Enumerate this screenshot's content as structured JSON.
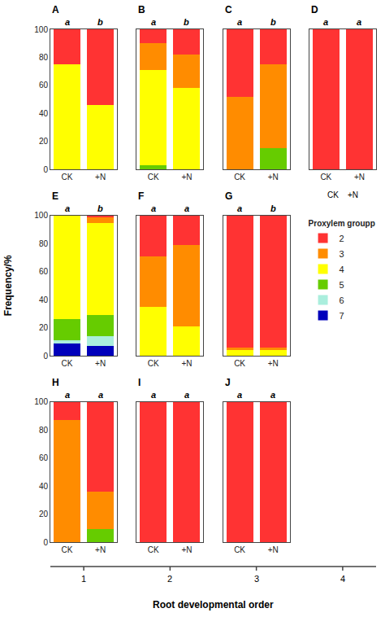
{
  "ylabel": "Frequency/%",
  "xlabel": "Root developmental order",
  "column_labels": [
    "1",
    "2",
    "3",
    "4"
  ],
  "legend_title": "Proxylem groupp",
  "chart_data": [
    {
      "type": "bar",
      "stacked": true,
      "title": "A",
      "categories": [
        "CK",
        "+N"
      ],
      "series": [
        {
          "name": "7",
          "color": "#0000BB",
          "values": [
            0,
            0
          ]
        },
        {
          "name": "6",
          "color": "#AAEEDD",
          "values": [
            0,
            0
          ]
        },
        {
          "name": "5",
          "color": "#66CC00",
          "values": [
            0,
            0
          ]
        },
        {
          "name": "4",
          "color": "#FFFF00",
          "values": [
            75,
            46
          ]
        },
        {
          "name": "3",
          "color": "#FF8C00",
          "values": [
            0,
            0
          ]
        },
        {
          "name": "2",
          "color": "#FF3333",
          "values": [
            25,
            54
          ]
        }
      ],
      "annotations": [
        {
          "category": "CK",
          "text": "a"
        },
        {
          "category": "+N",
          "text": "b"
        }
      ],
      "ylim": [
        0,
        100
      ],
      "yticks": [
        0,
        20,
        40,
        60,
        80,
        100
      ],
      "grid": false
    },
    {
      "type": "bar",
      "stacked": true,
      "title": "B",
      "categories": [
        "CK",
        "+N"
      ],
      "series": [
        {
          "name": "7",
          "color": "#0000BB",
          "values": [
            0,
            0
          ]
        },
        {
          "name": "6",
          "color": "#AAEEDD",
          "values": [
            0,
            0
          ]
        },
        {
          "name": "5",
          "color": "#66CC00",
          "values": [
            3,
            0
          ]
        },
        {
          "name": "4",
          "color": "#FFFF00",
          "values": [
            68,
            58
          ]
        },
        {
          "name": "3",
          "color": "#FF8C00",
          "values": [
            19,
            24
          ]
        },
        {
          "name": "2",
          "color": "#FF3333",
          "values": [
            10,
            18
          ]
        }
      ],
      "annotations": [
        {
          "category": "CK",
          "text": "a"
        },
        {
          "category": "+N",
          "text": "b"
        }
      ],
      "ylim": [
        0,
        100
      ],
      "yticks": [
        0,
        20,
        40,
        60,
        80,
        100
      ],
      "grid": false,
      "tick_labels": "x"
    },
    {
      "type": "bar",
      "stacked": true,
      "title": "C",
      "categories": [
        "CK",
        "+N"
      ],
      "series": [
        {
          "name": "7",
          "color": "#0000BB",
          "values": [
            0,
            0
          ]
        },
        {
          "name": "6",
          "color": "#AAEEDD",
          "values": [
            0,
            0
          ]
        },
        {
          "name": "5",
          "color": "#66CC00",
          "values": [
            0,
            15
          ]
        },
        {
          "name": "4",
          "color": "#FFFF00",
          "values": [
            0,
            0
          ]
        },
        {
          "name": "3",
          "color": "#FF8C00",
          "values": [
            52,
            60
          ]
        },
        {
          "name": "2",
          "color": "#FF3333",
          "values": [
            48,
            25
          ]
        }
      ],
      "annotations": [
        {
          "category": "CK",
          "text": "a"
        },
        {
          "category": "+N",
          "text": "b"
        }
      ],
      "ylim": [
        0,
        100
      ],
      "yticks": [
        0,
        20,
        40,
        60,
        80,
        100
      ],
      "grid": false,
      "tick_labels": "x"
    },
    {
      "type": "bar",
      "stacked": true,
      "title": "D",
      "categories": [
        "CK",
        "+N"
      ],
      "series": [
        {
          "name": "7",
          "color": "#0000BB",
          "values": [
            0,
            0
          ]
        },
        {
          "name": "6",
          "color": "#AAEEDD",
          "values": [
            0,
            0
          ]
        },
        {
          "name": "5",
          "color": "#66CC00",
          "values": [
            0,
            0
          ]
        },
        {
          "name": "4",
          "color": "#FFFF00",
          "values": [
            0,
            0
          ]
        },
        {
          "name": "3",
          "color": "#FF8C00",
          "values": [
            0,
            0
          ]
        },
        {
          "name": "2",
          "color": "#FF3333",
          "values": [
            100,
            100
          ]
        }
      ],
      "annotations": [
        {
          "category": "CK",
          "text": "a"
        },
        {
          "category": "+N",
          "text": "a"
        },
        {
          "text": "CK    +N"
        }
      ],
      "ylim": [
        0,
        100
      ],
      "yticks": [
        0,
        20,
        40,
        60,
        80,
        100
      ],
      "grid": false,
      "tick_labels": "x"
    },
    {
      "type": "bar",
      "stacked": true,
      "title": "E",
      "categories": [
        "CK",
        "+N"
      ],
      "series": [
        {
          "name": "7",
          "color": "#0000BB",
          "values": [
            9,
            7
          ]
        },
        {
          "name": "6",
          "color": "#AAEEDD",
          "values": [
            2,
            7
          ]
        },
        {
          "name": "5",
          "color": "#66CC00",
          "values": [
            15,
            15
          ]
        },
        {
          "name": "4",
          "color": "#FFFF00",
          "values": [
            74,
            66
          ]
        },
        {
          "name": "3",
          "color": "#FF8C00",
          "values": [
            0,
            4
          ]
        },
        {
          "name": "2",
          "color": "#FF3333",
          "values": [
            0,
            1
          ]
        }
      ],
      "annotations": [
        {
          "category": "CK",
          "text": "a"
        },
        {
          "category": "+N",
          "text": "b"
        }
      ],
      "ylim": [
        0,
        100
      ],
      "yticks": [
        0,
        20,
        40,
        60,
        80,
        100
      ],
      "grid": false
    },
    {
      "type": "bar",
      "stacked": true,
      "title": "F",
      "categories": [
        "CK",
        "+N"
      ],
      "series": [
        {
          "name": "7",
          "color": "#0000BB",
          "values": [
            0,
            0
          ]
        },
        {
          "name": "6",
          "color": "#AAEEDD",
          "values": [
            0,
            0
          ]
        },
        {
          "name": "5",
          "color": "#66CC00",
          "values": [
            0,
            0
          ]
        },
        {
          "name": "4",
          "color": "#FFFF00",
          "values": [
            35,
            21
          ]
        },
        {
          "name": "3",
          "color": "#FF8C00",
          "values": [
            36,
            58
          ]
        },
        {
          "name": "2",
          "color": "#FF3333",
          "values": [
            29,
            21
          ]
        }
      ],
      "annotations": [
        {
          "category": "CK",
          "text": "a"
        },
        {
          "category": "+N",
          "text": "a"
        }
      ],
      "ylim": [
        0,
        100
      ],
      "yticks": [
        0,
        20,
        40,
        60,
        80,
        100
      ],
      "grid": false,
      "tick_labels": "x"
    },
    {
      "type": "bar",
      "stacked": true,
      "title": "G",
      "categories": [
        "CK",
        "+N"
      ],
      "series": [
        {
          "name": "7",
          "color": "#0000BB",
          "values": [
            0,
            0
          ]
        },
        {
          "name": "6",
          "color": "#AAEEDD",
          "values": [
            0,
            0
          ]
        },
        {
          "name": "5",
          "color": "#66CC00",
          "values": [
            0,
            0
          ]
        },
        {
          "name": "4",
          "color": "#FFFF00",
          "values": [
            4,
            4
          ]
        },
        {
          "name": "3",
          "color": "#FF8C00",
          "values": [
            2,
            2
          ]
        },
        {
          "name": "2",
          "color": "#FF3333",
          "values": [
            94,
            94
          ]
        }
      ],
      "annotations": [
        {
          "category": "CK",
          "text": "a"
        },
        {
          "category": "+N",
          "text": "b"
        }
      ],
      "ylim": [
        0,
        100
      ],
      "yticks": [
        0,
        20,
        40,
        60,
        80,
        100
      ],
      "grid": false,
      "tick_labels": "x"
    },
    {
      "type": "bar",
      "stacked": true,
      "title": "H",
      "categories": [
        "CK",
        "+N"
      ],
      "series": [
        {
          "name": "7",
          "color": "#0000BB",
          "values": [
            0,
            0
          ]
        },
        {
          "name": "6",
          "color": "#AAEEDD",
          "values": [
            0,
            0
          ]
        },
        {
          "name": "5",
          "color": "#66CC00",
          "values": [
            0,
            9
          ]
        },
        {
          "name": "4",
          "color": "#FFFF00",
          "values": [
            0,
            0
          ]
        },
        {
          "name": "3",
          "color": "#FF8C00",
          "values": [
            87,
            27
          ]
        },
        {
          "name": "2",
          "color": "#FF3333",
          "values": [
            13,
            64
          ]
        }
      ],
      "annotations": [
        {
          "category": "CK",
          "text": "a"
        },
        {
          "category": "+N",
          "text": "a"
        }
      ],
      "ylim": [
        0,
        100
      ],
      "yticks": [
        0,
        20,
        40,
        60,
        80,
        100
      ],
      "grid": false
    },
    {
      "type": "bar",
      "stacked": true,
      "title": "I",
      "categories": [
        "CK",
        "+N"
      ],
      "series": [
        {
          "name": "7",
          "color": "#0000BB",
          "values": [
            0,
            0
          ]
        },
        {
          "name": "6",
          "color": "#AAEEDD",
          "values": [
            0,
            0
          ]
        },
        {
          "name": "5",
          "color": "#66CC00",
          "values": [
            0,
            0
          ]
        },
        {
          "name": "4",
          "color": "#FFFF00",
          "values": [
            0,
            0
          ]
        },
        {
          "name": "3",
          "color": "#FF8C00",
          "values": [
            0,
            0
          ]
        },
        {
          "name": "2",
          "color": "#FF3333",
          "values": [
            100,
            100
          ]
        }
      ],
      "annotations": [
        {
          "category": "CK",
          "text": "a"
        },
        {
          "category": "+N",
          "text": "a"
        }
      ],
      "ylim": [
        0,
        100
      ],
      "yticks": [
        0,
        20,
        40,
        60,
        80,
        100
      ],
      "grid": false,
      "tick_labels": "x"
    },
    {
      "type": "bar",
      "stacked": true,
      "title": "J",
      "categories": [
        "CK",
        "+N"
      ],
      "series": [
        {
          "name": "7",
          "color": "#0000BB",
          "values": [
            0,
            0
          ]
        },
        {
          "name": "6",
          "color": "#AAEEDD",
          "values": [
            0,
            0
          ]
        },
        {
          "name": "5",
          "color": "#66CC00",
          "values": [
            0,
            0
          ]
        },
        {
          "name": "4",
          "color": "#FFFF00",
          "values": [
            0,
            0
          ]
        },
        {
          "name": "3",
          "color": "#FF8C00",
          "values": [
            0,
            0
          ]
        },
        {
          "name": "2",
          "color": "#FF3333",
          "values": [
            100,
            100
          ]
        }
      ],
      "annotations": [
        {
          "category": "CK",
          "text": "a"
        },
        {
          "category": "+N",
          "text": "a"
        }
      ],
      "ylim": [
        0,
        100
      ],
      "yticks": [
        0,
        20,
        40,
        60,
        80,
        100
      ],
      "grid": false,
      "tick_labels": "x"
    }
  ]
}
